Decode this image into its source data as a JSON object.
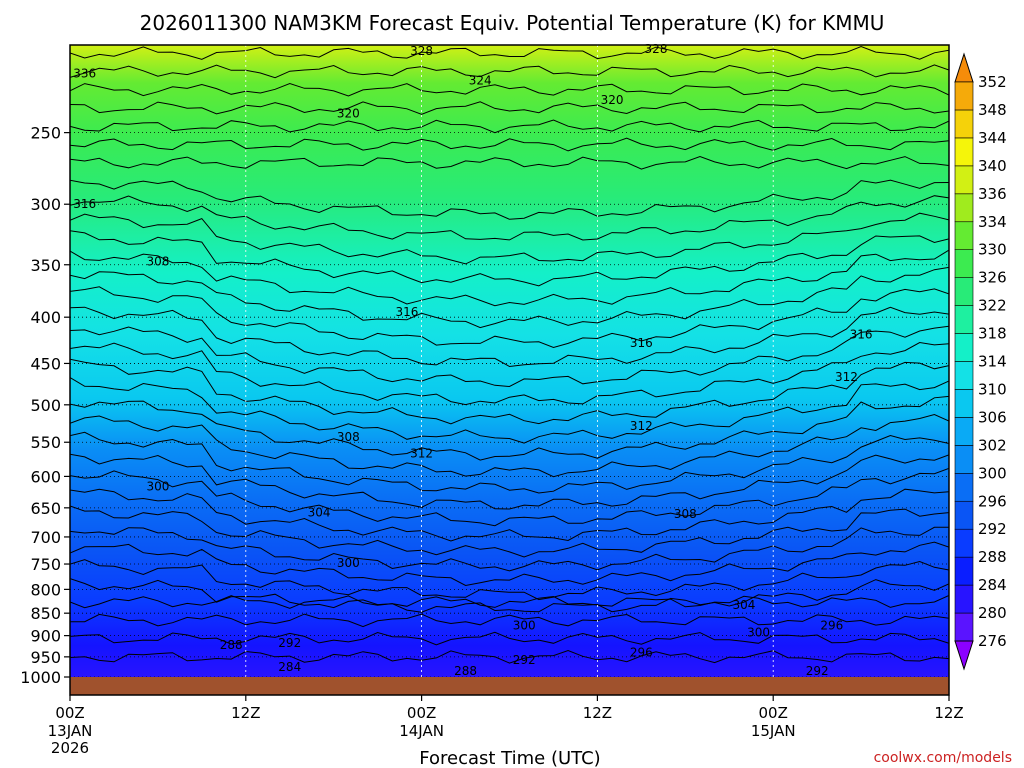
{
  "chart_data": {
    "type": "contour",
    "title": "2026011300 NAM3KM Forecast Equiv. Potential Temperature (K) for KMMU",
    "xlabel": "Forecast Time (UTC)",
    "ylabel": "",
    "x_ticks": [
      {
        "label": "00Z",
        "sub1": "13JAN",
        "sub2": "2026",
        "hour": 0
      },
      {
        "label": "12Z",
        "sub1": "",
        "sub2": "",
        "hour": 12
      },
      {
        "label": "00Z",
        "sub1": "14JAN",
        "sub2": "",
        "hour": 24
      },
      {
        "label": "12Z",
        "sub1": "",
        "sub2": "",
        "hour": 36
      },
      {
        "label": "00Z",
        "sub1": "15JAN",
        "sub2": "",
        "hour": 48
      },
      {
        "label": "12Z",
        "sub1": "",
        "sub2": "",
        "hour": 60
      }
    ],
    "xlim": [
      0,
      60
    ],
    "y_ticks": [
      250,
      300,
      350,
      400,
      450,
      500,
      550,
      600,
      650,
      700,
      750,
      800,
      850,
      900,
      950,
      1000
    ],
    "ylim": [
      1000,
      200
    ],
    "y_scale": "log-pressure",
    "grid": true,
    "colorbar": {
      "position": "right",
      "levels": [
        276,
        280,
        284,
        288,
        292,
        296,
        300,
        302,
        306,
        310,
        314,
        318,
        322,
        326,
        330,
        334,
        336,
        340,
        344,
        348,
        352
      ],
      "colors": [
        "#8c00ff",
        "#5a14ff",
        "#2814ff",
        "#0a1eff",
        "#0a3cff",
        "#0a55f5",
        "#0a6ef5",
        "#0a8ef5",
        "#0aaaf5",
        "#0ac8f0",
        "#14e1e6",
        "#14f0c8",
        "#1ef0a0",
        "#28eb78",
        "#3ceb50",
        "#64eb32",
        "#a0eb1e",
        "#d2f014",
        "#f5f50a",
        "#f5d20a",
        "#f5aa0a",
        "#f58c0a"
      ]
    },
    "contour_labels": [
      {
        "text": "336",
        "hour": 1.0,
        "p": 215
      },
      {
        "text": "328",
        "hour": 24.0,
        "p": 203
      },
      {
        "text": "328",
        "hour": 40.0,
        "p": 202
      },
      {
        "text": "324",
        "hour": 28.0,
        "p": 219
      },
      {
        "text": "320",
        "hour": 19.0,
        "p": 238
      },
      {
        "text": "320",
        "hour": 37.0,
        "p": 230
      },
      {
        "text": "316",
        "hour": 1.0,
        "p": 300
      },
      {
        "text": "308",
        "hour": 6.0,
        "p": 347
      },
      {
        "text": "316",
        "hour": 23.0,
        "p": 395
      },
      {
        "text": "316",
        "hour": 39.0,
        "p": 427
      },
      {
        "text": "316",
        "hour": 54.0,
        "p": 418
      },
      {
        "text": "312",
        "hour": 53.0,
        "p": 466
      },
      {
        "text": "312",
        "hour": 39.0,
        "p": 528
      },
      {
        "text": "308",
        "hour": 19.0,
        "p": 543
      },
      {
        "text": "312",
        "hour": 24.0,
        "p": 566
      },
      {
        "text": "300",
        "hour": 6.0,
        "p": 616
      },
      {
        "text": "304",
        "hour": 17.0,
        "p": 658
      },
      {
        "text": "308",
        "hour": 42.0,
        "p": 660
      },
      {
        "text": "300",
        "hour": 19.0,
        "p": 748
      },
      {
        "text": "304",
        "hour": 46.0,
        "p": 833
      },
      {
        "text": "300",
        "hour": 31.0,
        "p": 877
      },
      {
        "text": "300",
        "hour": 47.0,
        "p": 893
      },
      {
        "text": "296",
        "hour": 52.0,
        "p": 877
      },
      {
        "text": "288",
        "hour": 11.0,
        "p": 922
      },
      {
        "text": "292",
        "hour": 15.0,
        "p": 917
      },
      {
        "text": "296",
        "hour": 39.0,
        "p": 940
      },
      {
        "text": "292",
        "hour": 31.0,
        "p": 958
      },
      {
        "text": "284",
        "hour": 15.0,
        "p": 975
      },
      {
        "text": "288",
        "hour": 27.0,
        "p": 985
      },
      {
        "text": "292",
        "hour": 51.0,
        "p": 985
      }
    ]
  },
  "credit": "coolwx.com/models"
}
